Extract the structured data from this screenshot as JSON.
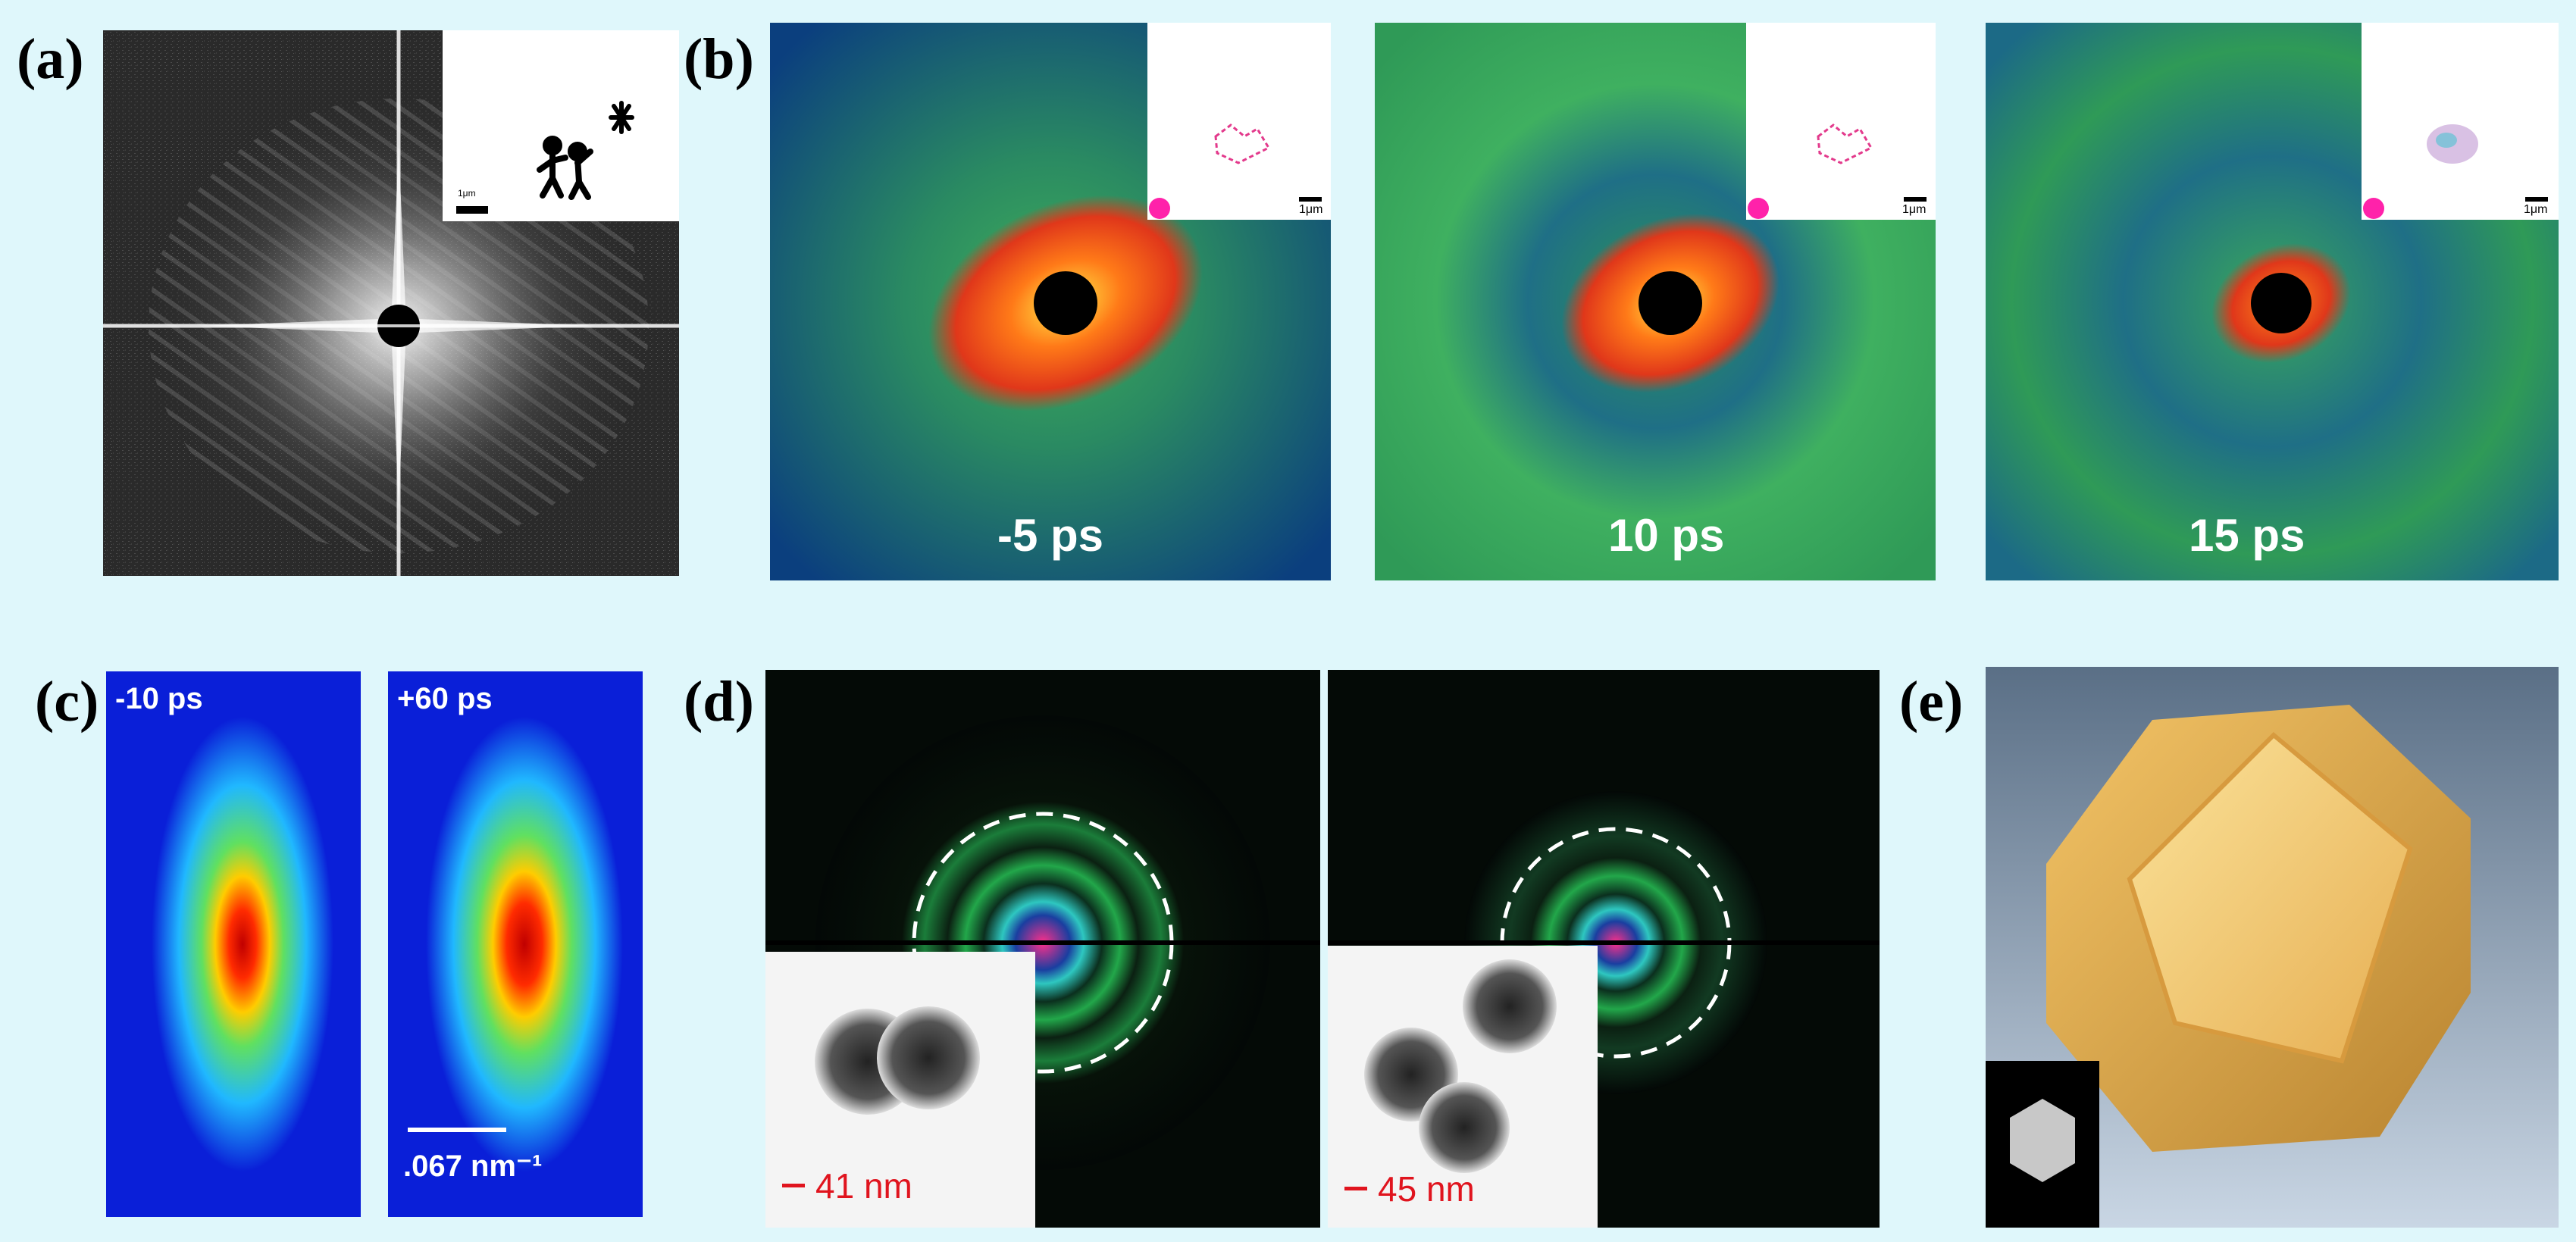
{
  "panels": {
    "a": {
      "label": "(a)",
      "inset_scale": "1μm"
    },
    "b": {
      "label": "(b)",
      "frames": [
        {
          "time": "-5 ps",
          "inset_scale": "1μm"
        },
        {
          "time": "10 ps",
          "inset_scale": "1μm"
        },
        {
          "time": "15 ps",
          "inset_scale": "1μm"
        }
      ]
    },
    "c": {
      "label": "(c)",
      "times": [
        "-10 ps",
        "+60 ps"
      ],
      "scale": ".067 nm⁻¹"
    },
    "d": {
      "label": "(d)",
      "scales": [
        "41 nm",
        "45 nm"
      ]
    },
    "e": {
      "label": "(e)"
    }
  },
  "colors": {
    "background": "#dff7fb",
    "scale_red": "#e0141e",
    "heat_orange": "#ff5a14",
    "field_green": "#2f8a52",
    "field_blue": "#0a3a7a",
    "jet_blue": "#0a1fd8",
    "gold": "#e6ae52"
  }
}
